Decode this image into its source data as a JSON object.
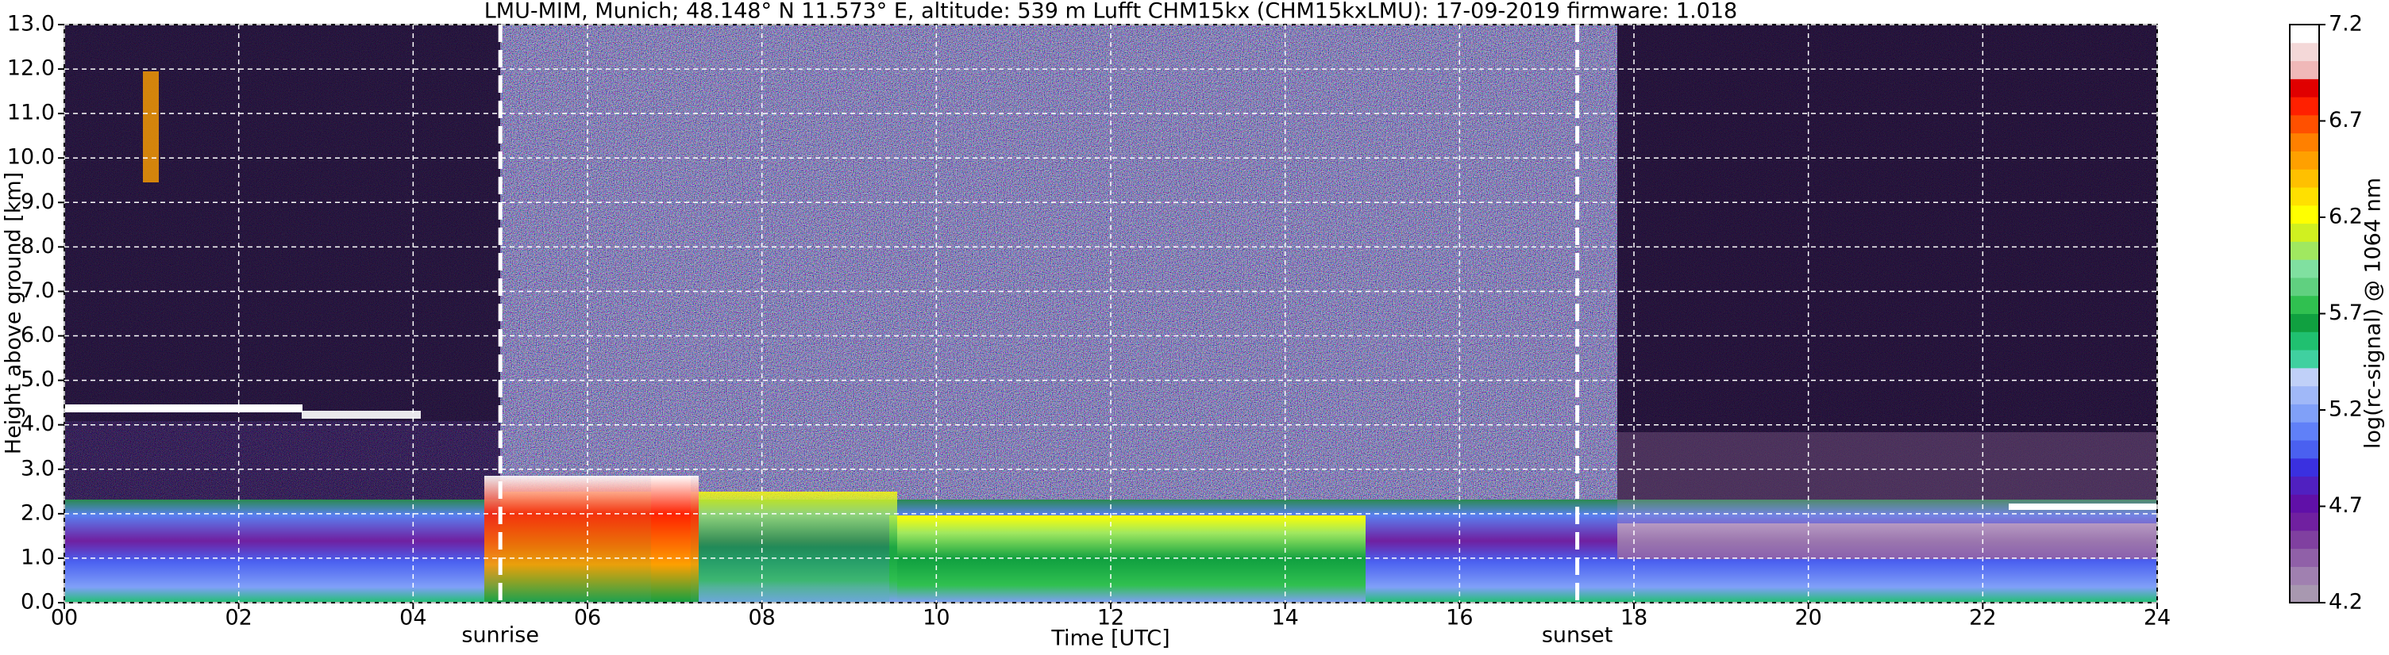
{
  "chart_data": {
    "type": "heatmap",
    "title": "LMU-MIM, Munich; 48.148° N 11.573° E, altitude: 539 m    Lufft CHM15kx (CHM15kxLMU): 17-09-2019    firmware: 1.018",
    "x_label": "Time [UTC]",
    "y_label": "Height above ground [km]",
    "xlim": [
      0,
      24
    ],
    "ylim": [
      0,
      13
    ],
    "xticks": [
      {
        "value": 0,
        "label": "00"
      },
      {
        "value": 2,
        "label": "02"
      },
      {
        "value": 4,
        "label": "04"
      },
      {
        "value": 6,
        "label": "06"
      },
      {
        "value": 8,
        "label": "08"
      },
      {
        "value": 10,
        "label": "10"
      },
      {
        "value": 12,
        "label": "12"
      },
      {
        "value": 14,
        "label": "14"
      },
      {
        "value": 16,
        "label": "16"
      },
      {
        "value": 18,
        "label": "18"
      },
      {
        "value": 20,
        "label": "20"
      },
      {
        "value": 22,
        "label": "22"
      },
      {
        "value": 24,
        "label": "24"
      }
    ],
    "yticks": [
      {
        "value": 0,
        "label": "0.0"
      },
      {
        "value": 1,
        "label": "1.0"
      },
      {
        "value": 2,
        "label": "2.0"
      },
      {
        "value": 3,
        "label": "3.0"
      },
      {
        "value": 4,
        "label": "4.0"
      },
      {
        "value": 5,
        "label": "5.0"
      },
      {
        "value": 6,
        "label": "6.0"
      },
      {
        "value": 7,
        "label": "7.0"
      },
      {
        "value": 8,
        "label": "8.0"
      },
      {
        "value": 9,
        "label": "9.0"
      },
      {
        "value": 10,
        "label": "10.0"
      },
      {
        "value": 11,
        "label": "11.0"
      },
      {
        "value": 12,
        "label": "12.0"
      },
      {
        "value": 13,
        "label": "13.0"
      }
    ],
    "grid": true,
    "annotations": [
      {
        "text": "sunrise",
        "x": 5.0
      },
      {
        "text": "sunset",
        "x": 17.35
      }
    ],
    "colorbar": {
      "label": "log(rc-signal) @ 1064 nm",
      "lim": [
        4.2,
        7.2
      ],
      "ticks": [
        4.2,
        4.7,
        5.2,
        5.7,
        6.2,
        6.7,
        7.2
      ],
      "colors": [
        "#a898b0",
        "#a080b0",
        "#9060a8",
        "#8040a0",
        "#7020a0",
        "#6010a8",
        "#5020c0",
        "#3a30e0",
        "#4a60f0",
        "#6080f8",
        "#80a0f8",
        "#a0b8f8",
        "#c0d0f8",
        "#40d0a0",
        "#20c070",
        "#10a040",
        "#30c050",
        "#60d080",
        "#80e0a0",
        "#a0e860",
        "#d0f020",
        "#ffff00",
        "#ffe000",
        "#ffc000",
        "#ffa000",
        "#ff8000",
        "#ff5000",
        "#ff2000",
        "#e00000",
        "#f0b8b8",
        "#f4d8d8",
        "#ffffff"
      ]
    }
  }
}
